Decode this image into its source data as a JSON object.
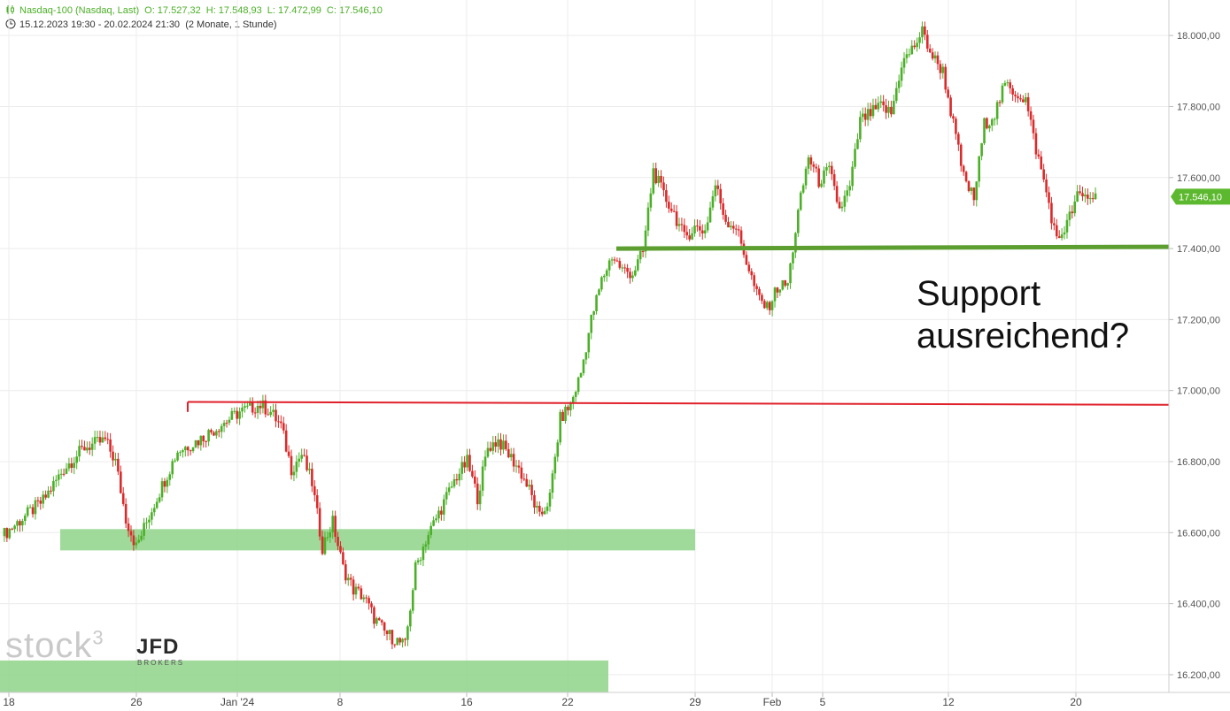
{
  "header": {
    "instrument": "Nasdaq-100 (Nasdaq, Last)",
    "ohlc": [
      "O: 17.527,32",
      "H: 17.548,93",
      "L: 17.472,99",
      "C: 17.546,10"
    ],
    "range": "15.12.2023 19:30 - 20.02.2024 21:30",
    "period": "(2 Monate, 1 Stunde)",
    "icons": [
      "candlestick-icon",
      "clock-icon"
    ]
  },
  "annotation": "Support\nausreichend?",
  "watermark": {
    "brand": "stock",
    "superscript": "3",
    "partner": "JFD",
    "partner_sub": "BROKERS"
  },
  "colors": {
    "up": "#4caf28",
    "down": "#d92b2b",
    "resistance": "#e0202a",
    "support_line": "#5c9e30",
    "zone": "#8fd48a",
    "price_badge": "#5cb82e"
  },
  "chart_data": {
    "type": "candlestick",
    "title": "Nasdaq-100 (Nasdaq, Last)",
    "interval": "1 Stunde",
    "last_price": 17546.1,
    "last_price_label": "17.546,10",
    "ylim": [
      16150,
      18100
    ],
    "y_ticks": [
      16200,
      16400,
      16600,
      16800,
      17000,
      17200,
      17400,
      17600,
      17800,
      18000
    ],
    "y_tick_labels": [
      "16.200,00",
      "16.400,00",
      "16.600,00",
      "16.800,00",
      "17.000,00",
      "17.200,00",
      "17.400,00",
      "17.600,00",
      "17.800,00",
      "18.000,00"
    ],
    "x_tick_labels": [
      "18",
      "26",
      "Jan '24",
      "8",
      "16",
      "22",
      "29",
      "Feb",
      "5",
      "12",
      "20"
    ],
    "grid": true,
    "close_path": [
      [
        0,
        16590
      ],
      [
        4,
        16690
      ],
      [
        6,
        16780
      ],
      [
        8,
        16840
      ],
      [
        10,
        16860
      ],
      [
        11,
        16800
      ],
      [
        12,
        16640
      ],
      [
        13,
        16560
      ],
      [
        15,
        16700
      ],
      [
        17,
        16830
      ],
      [
        19,
        16860
      ],
      [
        21,
        16900
      ],
      [
        23,
        16940
      ],
      [
        25,
        16960
      ],
      [
        26,
        16940
      ],
      [
        27,
        16900
      ],
      [
        28,
        16780
      ],
      [
        29,
        16820
      ],
      [
        30,
        16740
      ],
      [
        31,
        16560
      ],
      [
        32,
        16630
      ],
      [
        33,
        16500
      ],
      [
        34,
        16440
      ],
      [
        35,
        16420
      ],
      [
        36,
        16360
      ],
      [
        37,
        16320
      ],
      [
        38,
        16300
      ],
      [
        39,
        16280
      ],
      [
        40,
        16500
      ],
      [
        41,
        16580
      ],
      [
        42,
        16640
      ],
      [
        43,
        16700
      ],
      [
        44,
        16760
      ],
      [
        45,
        16800
      ],
      [
        46,
        16700
      ],
      [
        47,
        16840
      ],
      [
        48,
        16860
      ],
      [
        49,
        16820
      ],
      [
        50,
        16780
      ],
      [
        51,
        16720
      ],
      [
        52,
        16640
      ],
      [
        53,
        16700
      ],
      [
        54,
        16920
      ],
      [
        55,
        16960
      ],
      [
        56,
        17050
      ],
      [
        57,
        17200
      ],
      [
        58,
        17310
      ],
      [
        59,
        17380
      ],
      [
        60,
        17340
      ],
      [
        61,
        17330
      ],
      [
        62,
        17390
      ],
      [
        63,
        17620
      ],
      [
        64,
        17550
      ],
      [
        65,
        17500
      ],
      [
        66,
        17430
      ],
      [
        67,
        17460
      ],
      [
        68,
        17450
      ],
      [
        69,
        17580
      ],
      [
        70,
        17480
      ],
      [
        71,
        17460
      ],
      [
        73,
        17270
      ],
      [
        74,
        17230
      ],
      [
        75,
        17290
      ],
      [
        76,
        17300
      ],
      [
        77,
        17500
      ],
      [
        78,
        17660
      ],
      [
        79,
        17590
      ],
      [
        80,
        17620
      ],
      [
        81,
        17510
      ],
      [
        82,
        17570
      ],
      [
        83,
        17760
      ],
      [
        84,
        17780
      ],
      [
        85,
        17800
      ],
      [
        86,
        17780
      ],
      [
        87,
        17920
      ],
      [
        88,
        17960
      ],
      [
        89,
        18010
      ],
      [
        90,
        17940
      ],
      [
        91,
        17900
      ],
      [
        93,
        17600
      ],
      [
        94,
        17540
      ],
      [
        95,
        17750
      ],
      [
        96,
        17780
      ],
      [
        97,
        17860
      ],
      [
        98,
        17840
      ],
      [
        99,
        17820
      ],
      [
        100,
        17680
      ],
      [
        101,
        17560
      ],
      [
        102,
        17420
      ],
      [
        103,
        17470
      ],
      [
        104,
        17546
      ]
    ],
    "n_bars": 106,
    "levels": [
      {
        "name": "resistance",
        "type": "line",
        "value_start": 16968,
        "value_end": 16960,
        "from_bar": 25,
        "to_bar": 104
      },
      {
        "name": "support",
        "type": "line",
        "value_start": 17400,
        "value_end": 17405,
        "from_bar": 57,
        "to_bar": 104
      }
    ],
    "zones": [
      {
        "name": "support-zone-upper",
        "low": 16550,
        "high": 16610,
        "from_bar": 5,
        "to_bar": 65
      },
      {
        "name": "support-zone-lower",
        "low": 16150,
        "high": 16240,
        "from_bar": 0,
        "to_bar": 57
      }
    ]
  }
}
